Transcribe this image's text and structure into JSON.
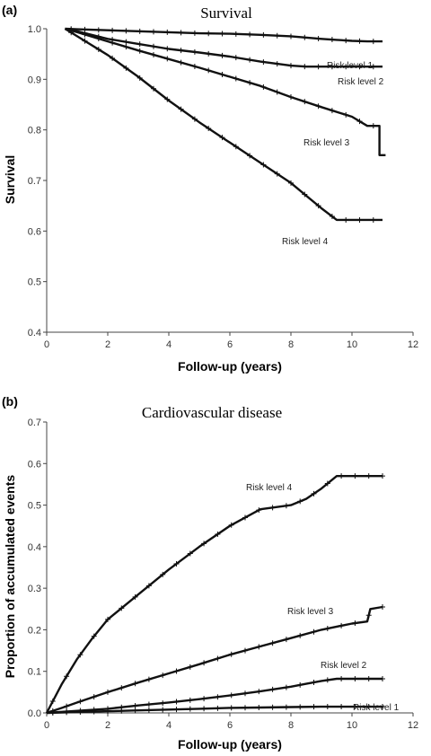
{
  "chart_data": [
    {
      "panel": "(a)",
      "type": "line",
      "title": "Survival",
      "xlabel": "Follow-up (years)",
      "ylabel": "Survival",
      "xlim": [
        0,
        12
      ],
      "ylim": [
        0.4,
        1.0
      ],
      "xticks": [
        0,
        2,
        4,
        6,
        8,
        10,
        12
      ],
      "yticks": [
        0.4,
        0.5,
        0.6,
        0.7,
        0.8,
        0.9,
        1.0
      ],
      "tick_decimals": 1,
      "series": [
        {
          "name": "Risk level 1",
          "x": [
            0.6,
            1,
            2,
            3,
            4,
            5,
            6,
            7,
            8,
            9,
            9.5,
            10,
            10.5,
            11
          ],
          "y": [
            1.0,
            0.999,
            0.997,
            0.995,
            0.993,
            0.991,
            0.99,
            0.988,
            0.985,
            0.98,
            0.978,
            0.976,
            0.975,
            0.975
          ]
        },
        {
          "name": "Risk level 2",
          "x": [
            0.6,
            1,
            2,
            3,
            4,
            5,
            6,
            7,
            8,
            8.5,
            9,
            10,
            11
          ],
          "y": [
            1.0,
            0.995,
            0.98,
            0.97,
            0.96,
            0.953,
            0.945,
            0.935,
            0.927,
            0.925,
            0.925,
            0.925,
            0.925
          ]
        },
        {
          "name": "Risk level 3",
          "x": [
            0.6,
            1,
            2,
            3,
            4,
            5,
            6,
            7,
            8,
            9,
            10,
            10.5,
            10.9,
            10.9,
            11.1
          ],
          "y": [
            1.0,
            0.993,
            0.975,
            0.957,
            0.94,
            0.923,
            0.905,
            0.887,
            0.865,
            0.845,
            0.826,
            0.808,
            0.808,
            0.75,
            0.75
          ]
        },
        {
          "name": "Risk level 4",
          "x": [
            0.6,
            1,
            2,
            3,
            4,
            5,
            6,
            7,
            8,
            8.5,
            9,
            9.5,
            10,
            11
          ],
          "y": [
            1.0,
            0.985,
            0.948,
            0.905,
            0.858,
            0.815,
            0.775,
            0.735,
            0.695,
            0.67,
            0.645,
            0.622,
            0.622,
            0.622
          ]
        }
      ]
    },
    {
      "panel": "(b)",
      "type": "line",
      "title": "Cardiovascular disease",
      "xlabel": "Follow-up (years)",
      "ylabel": "Proportion of accumulated events",
      "xlim": [
        0,
        12
      ],
      "ylim": [
        0.0,
        0.7
      ],
      "xticks": [
        0,
        2,
        4,
        6,
        8,
        10,
        12
      ],
      "yticks": [
        0.0,
        0.1,
        0.2,
        0.3,
        0.4,
        0.5,
        0.6,
        0.7
      ],
      "tick_decimals": 1,
      "series": [
        {
          "name": "Risk level 1",
          "x": [
            0,
            1,
            2,
            3,
            4,
            5,
            6,
            7,
            8,
            9,
            10,
            11
          ],
          "y": [
            0.0,
            0.002,
            0.004,
            0.006,
            0.008,
            0.01,
            0.012,
            0.013,
            0.014,
            0.015,
            0.015,
            0.015
          ]
        },
        {
          "name": "Risk level 2",
          "x": [
            0,
            1,
            2,
            3,
            4,
            5,
            6,
            7,
            8,
            8.5,
            9,
            9.5,
            10,
            11
          ],
          "y": [
            0.0,
            0.005,
            0.01,
            0.018,
            0.025,
            0.033,
            0.042,
            0.052,
            0.063,
            0.07,
            0.077,
            0.082,
            0.082,
            0.082
          ]
        },
        {
          "name": "Risk level 3",
          "x": [
            0,
            0.5,
            1,
            2,
            3,
            4,
            5,
            6,
            7,
            8,
            9,
            10,
            10.5,
            10.6,
            11
          ],
          "y": [
            0.0,
            0.012,
            0.025,
            0.05,
            0.073,
            0.095,
            0.117,
            0.14,
            0.16,
            0.18,
            0.2,
            0.215,
            0.22,
            0.25,
            0.255
          ]
        },
        {
          "name": "Risk level 4",
          "x": [
            0,
            0.5,
            1,
            1.5,
            2,
            3,
            4,
            5,
            6,
            7,
            8,
            8.5,
            9,
            9.5,
            10,
            11
          ],
          "y": [
            0.0,
            0.07,
            0.13,
            0.18,
            0.225,
            0.285,
            0.345,
            0.4,
            0.45,
            0.49,
            0.5,
            0.515,
            0.54,
            0.57,
            0.57,
            0.57
          ]
        }
      ]
    }
  ]
}
